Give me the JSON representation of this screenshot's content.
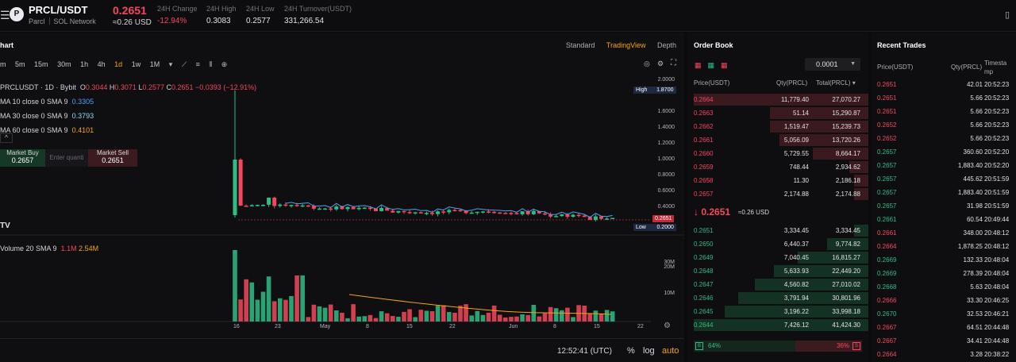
{
  "header": {
    "symbol": "PRCL/USDT",
    "project": "Parcl",
    "network": "SOL Network",
    "last_price": "0.2651",
    "last_price_usd": "≈0.26 USD",
    "stats": [
      {
        "label": "24H Change",
        "value": "-12.94%"
      },
      {
        "label": "24H High",
        "value": "0.3083"
      },
      {
        "label": "24H Low",
        "value": "0.2577"
      },
      {
        "label": "24H Turnover(USDT)",
        "value": "331,266.54"
      }
    ]
  },
  "chart": {
    "title": "hart",
    "modes": [
      "Standard",
      "TradingView",
      "Depth"
    ],
    "active_mode": "TradingView",
    "timeframes": [
      "m",
      "5m",
      "15m",
      "30m",
      "1h",
      "4h",
      "1d",
      "1w",
      "1M"
    ],
    "active_timeframe": "1d",
    "legend": {
      "symbol_line": "PRCLUSDT · 1D · Bybit",
      "open": "0.3044",
      "high": "0.3071",
      "low": "0.2577",
      "close": "0.2651",
      "change": "−0.0393 (−12.91%)",
      "ma1_label": "MA 10 close 0 SMA 9",
      "ma1_value": "0.3305",
      "ma2_label": "MA 30 close 0 SMA 9",
      "ma2_value": "0.3793",
      "ma3_label": "MA 60 close 0 SMA 9",
      "ma3_value": "0.4101"
    },
    "quick_trade": {
      "buy_label": "Market Buy",
      "buy_price": "0.2657",
      "input_placeholder": "Enter quanti",
      "sell_label": "Market Sell",
      "sell_price": "0.2651"
    },
    "price_axis": [
      "2.0000",
      "1.6000",
      "1.4000",
      "1.2000",
      "1.0000",
      "0.8000",
      "0.6000",
      "0.4000",
      "0.2000"
    ],
    "high_tag": {
      "label": "High",
      "value": "1.8700"
    },
    "low_tag": {
      "label": "Low",
      "value": "0.2000"
    },
    "current_tag": "0.2651",
    "volume_legend": {
      "label": "Volume 20 SMA 9",
      "v1": "1.1M",
      "v2": "2.54M"
    },
    "volume_axis": [
      "30M",
      "20M",
      "10M"
    ],
    "x_axis": [
      "16",
      "23",
      "May",
      "8",
      "15",
      "22",
      "Jun",
      "8",
      "15",
      "22"
    ],
    "clock": "12:52:41 (UTC)",
    "pct_label": "%",
    "log_label": "log",
    "auto_label": "auto",
    "colors": {
      "up": "#2ebd85",
      "down": "#f6465d",
      "accent": "#f7a600"
    }
  },
  "chart_data": {
    "type": "line",
    "x": [
      "16",
      "23",
      "May",
      "8",
      "15",
      "22",
      "Jun",
      "8",
      "15",
      "22"
    ],
    "series": [
      {
        "name": "PRCLUSDT",
        "values": [
          1.0,
          0.48,
          0.42,
          0.4,
          0.37,
          0.36,
          0.38,
          0.35,
          0.32,
          0.2651
        ]
      }
    ],
    "ylim": [
      0.2,
      2.0
    ],
    "xlabel": "",
    "ylabel": ""
  },
  "orderbook": {
    "title": "Order Book",
    "precision": "0.0001",
    "headers": [
      "Price(USDT)",
      "Qty(PRCL)",
      "Total(PRCL)"
    ],
    "asks": [
      {
        "p": "0.2664",
        "q": "11,779.40",
        "t": "27,070.27",
        "d": 1.0
      },
      {
        "p": "0.2663",
        "q": "51.14",
        "t": "15,290.87",
        "d": 0.565
      },
      {
        "p": "0.2662",
        "q": "1,519.47",
        "t": "15,239.73",
        "d": 0.563
      },
      {
        "p": "0.2661",
        "q": "5,056.09",
        "t": "13,720.26",
        "d": 0.507
      },
      {
        "p": "0.2660",
        "q": "5,729.55",
        "t": "8,664.17",
        "d": 0.32
      },
      {
        "p": "0.2659",
        "q": "748.44",
        "t": "2,934.62",
        "d": 0.108
      },
      {
        "p": "0.2658",
        "q": "11.30",
        "t": "2,186.18",
        "d": 0.081
      },
      {
        "p": "0.2657",
        "q": "2,174.88",
        "t": "2,174.88",
        "d": 0.08
      }
    ],
    "mid_price": "0.2651",
    "mid_usd": "≈0.26 USD",
    "bids": [
      {
        "p": "0.2651",
        "q": "3,334.45",
        "t": "3,334.45",
        "d": 0.08
      },
      {
        "p": "0.2650",
        "q": "6,440.37",
        "t": "9,774.82",
        "d": 0.236
      },
      {
        "p": "0.2649",
        "q": "7,040.45",
        "t": "16,815.27",
        "d": 0.406
      },
      {
        "p": "0.2648",
        "q": "5,633.93",
        "t": "22,449.20",
        "d": 0.542
      },
      {
        "p": "0.2647",
        "q": "4,560.82",
        "t": "27,010.02",
        "d": 0.652
      },
      {
        "p": "0.2646",
        "q": "3,791.94",
        "t": "30,801.96",
        "d": 0.744
      },
      {
        "p": "0.2645",
        "q": "3,196.22",
        "t": "33,998.18",
        "d": 0.821
      },
      {
        "p": "0.2644",
        "q": "7,426.12",
        "t": "41,424.30",
        "d": 1.0
      }
    ],
    "buy_ratio": "64%",
    "sell_ratio": "36%",
    "buy_label": "B",
    "sell_label": "S"
  },
  "trades": {
    "title": "Recent Trades",
    "headers": [
      "Price(USDT)",
      "Qty(PRCL)",
      "Timesta mp"
    ],
    "rows": [
      {
        "p": "0.2651",
        "q": "42.01",
        "t": "20:52:23",
        "side": "s"
      },
      {
        "p": "0.2651",
        "q": "5.66",
        "t": "20:52:23",
        "side": "s"
      },
      {
        "p": "0.2651",
        "q": "5.66",
        "t": "20:52:23",
        "side": "s"
      },
      {
        "p": "0.2652",
        "q": "5.66",
        "t": "20:52:23",
        "side": "s"
      },
      {
        "p": "0.2652",
        "q": "5.66",
        "t": "20:52:23",
        "side": "s"
      },
      {
        "p": "0.2657",
        "q": "360.60",
        "t": "20:52:20",
        "side": "b"
      },
      {
        "p": "0.2657",
        "q": "1,883.40",
        "t": "20:52:20",
        "side": "b"
      },
      {
        "p": "0.2657",
        "q": "445.62",
        "t": "20:51:59",
        "side": "b"
      },
      {
        "p": "0.2657",
        "q": "1,883.40",
        "t": "20:51:59",
        "side": "b"
      },
      {
        "p": "0.2657",
        "q": "31.98",
        "t": "20:51:59",
        "side": "b"
      },
      {
        "p": "0.2661",
        "q": "60.54",
        "t": "20:49:44",
        "side": "b"
      },
      {
        "p": "0.2661",
        "q": "348.00",
        "t": "20:48:12",
        "side": "s"
      },
      {
        "p": "0.2664",
        "q": "1,878.25",
        "t": "20:48:12",
        "side": "s"
      },
      {
        "p": "0.2669",
        "q": "132.33",
        "t": "20:48:04",
        "side": "b"
      },
      {
        "p": "0.2669",
        "q": "278.39",
        "t": "20:48:04",
        "side": "b"
      },
      {
        "p": "0.2668",
        "q": "5.63",
        "t": "20:48:04",
        "side": "b"
      },
      {
        "p": "0.2666",
        "q": "33.30",
        "t": "20:46:25",
        "side": "s"
      },
      {
        "p": "0.2670",
        "q": "32.53",
        "t": "20:46:21",
        "side": "b"
      },
      {
        "p": "0.2667",
        "q": "64.51",
        "t": "20:44:48",
        "side": "s"
      },
      {
        "p": "0.2667",
        "q": "34.41",
        "t": "20:44:48",
        "side": "s"
      },
      {
        "p": "0.2664",
        "q": "3.28",
        "t": "20:38:22",
        "side": "s"
      }
    ]
  }
}
